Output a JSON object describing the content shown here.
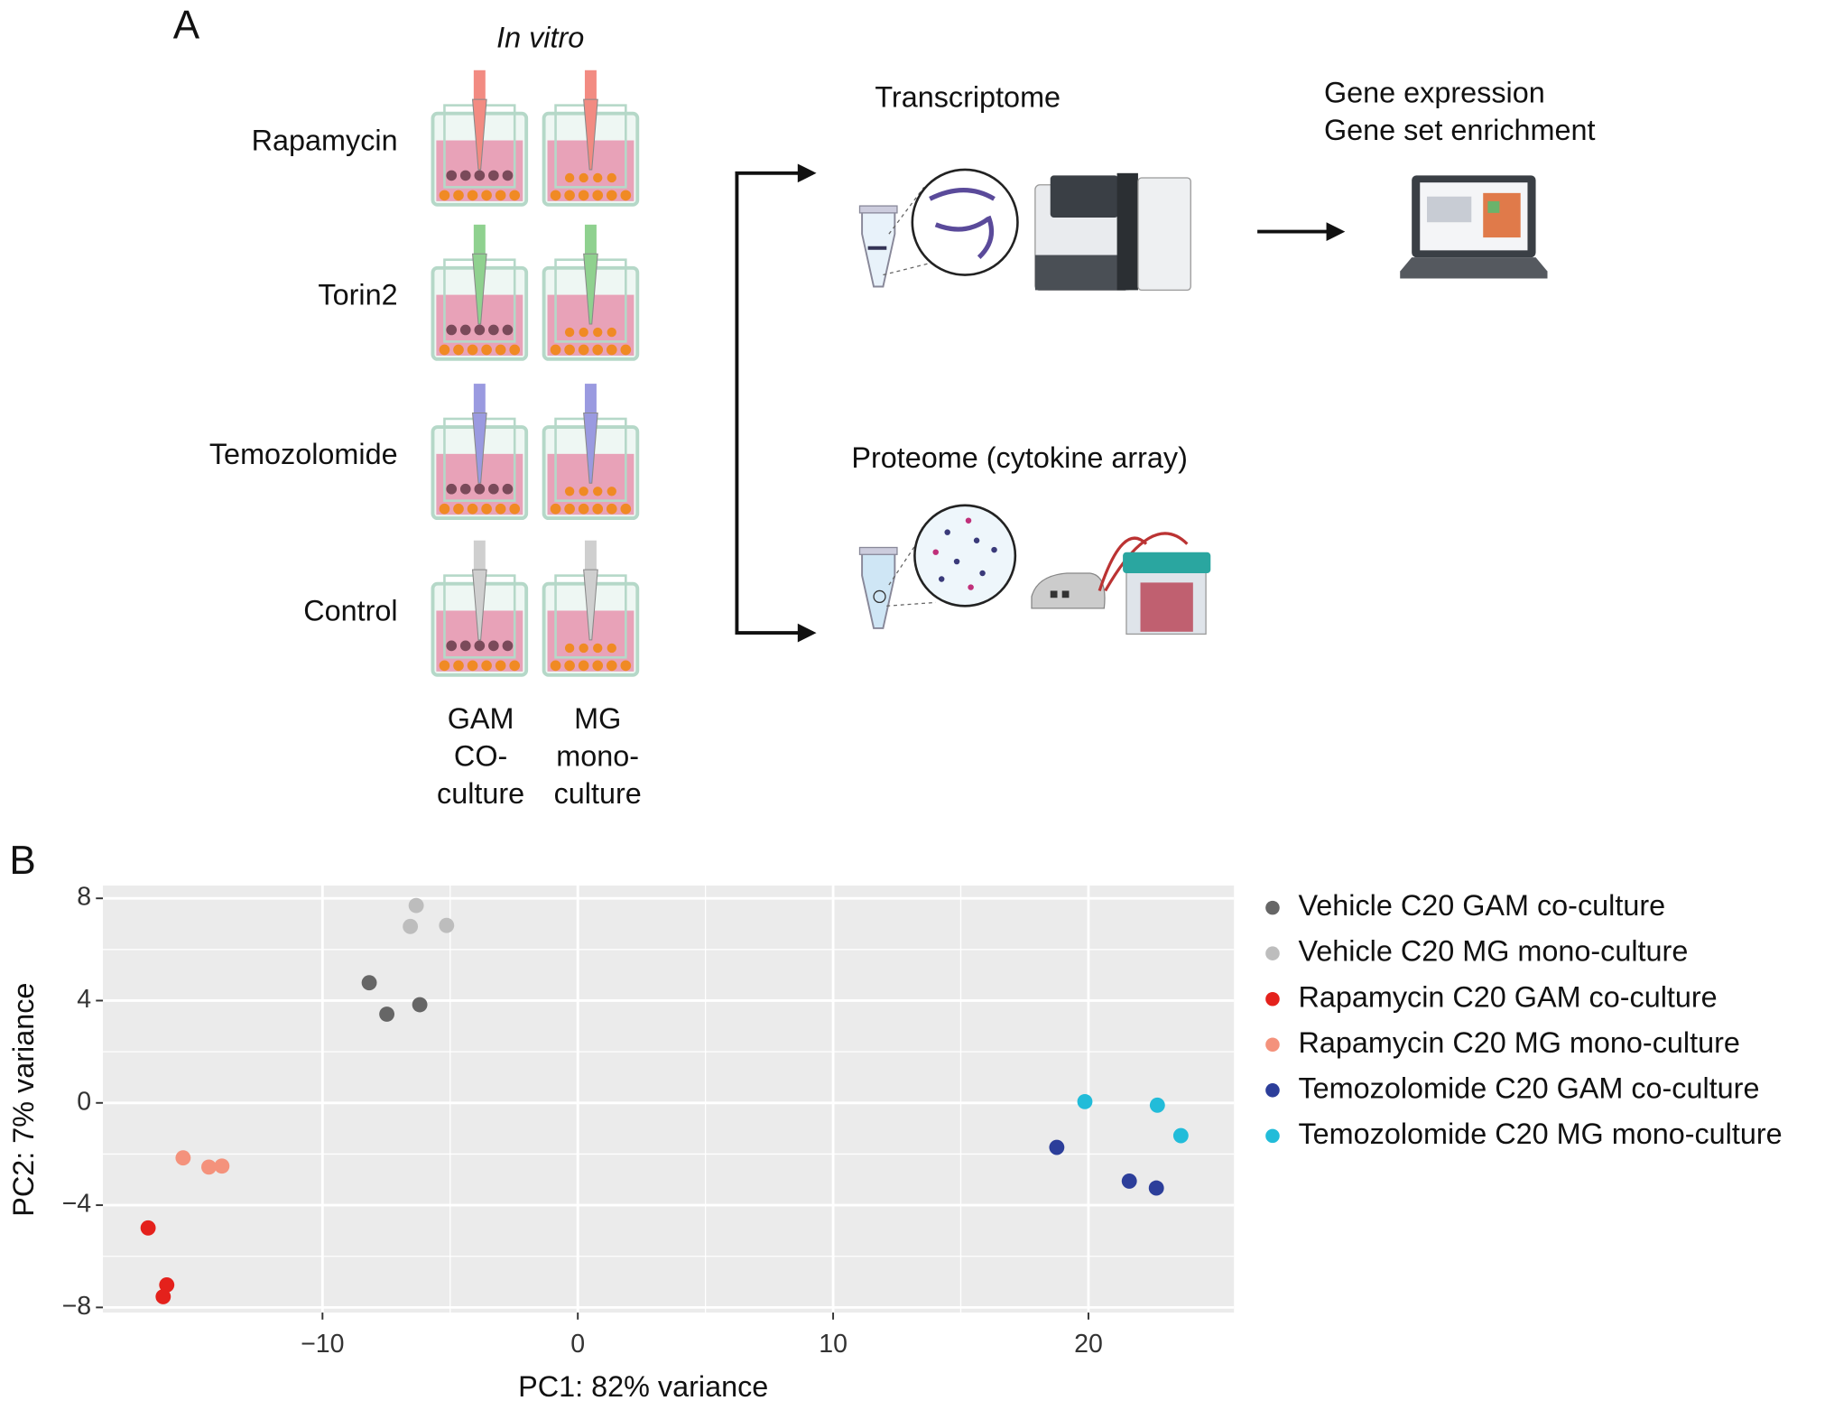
{
  "panel_a": {
    "label": "A",
    "condition_title": "In vitro",
    "rows": [
      "Rapamycin",
      "Torin2",
      "Temozolomide",
      "Control"
    ],
    "columns": [
      [
        "GAM",
        "CO-",
        "culture"
      ],
      [
        "MG",
        "mono-",
        "culture"
      ]
    ],
    "transcriptome": "Transcriptome",
    "outputs": [
      "Gene expression",
      "Gene set enrichment"
    ],
    "proteome": "Proteome (cytokine array)"
  },
  "panel_b_label": "B",
  "chart_data": {
    "type": "scatter",
    "xlabel": "PC1: 82% variance",
    "ylabel": "PC2: 7% variance",
    "xlim": [
      -18.6,
      25.7
    ],
    "ylim": [
      -8.2,
      8.5
    ],
    "xticks": [
      {
        "value": -10,
        "label": "−10"
      },
      0,
      10,
      20
    ],
    "yticks": [
      8,
      4,
      0,
      {
        "value": -4,
        "label": "−4"
      },
      {
        "value": -8,
        "label": "−8"
      }
    ],
    "grid": true,
    "legend": "right",
    "series": [
      {
        "name": "Vehicle C20 GAM co-culture",
        "color": "#666666",
        "x": [
          -8.17,
          -7.48,
          -6.19
        ],
        "values": [
          4.7,
          3.47,
          3.84
        ]
      },
      {
        "name": "Vehicle C20 MG mono-culture",
        "color": "#bdbdbd",
        "x": [
          -6.33,
          -6.56,
          -5.14
        ],
        "values": [
          7.72,
          6.9,
          6.94
        ]
      },
      {
        "name": "Rapamycin C20 GAM co-culture",
        "color": "#e4211c",
        "x": [
          -16.83,
          -16.1,
          -16.24
        ],
        "values": [
          -4.89,
          -7.12,
          -7.58
        ]
      },
      {
        "name": "Rapamycin C20 MG mono-culture",
        "color": "#f4927c",
        "x": [
          -15.46,
          -14.45,
          -13.94
        ],
        "values": [
          -2.15,
          -2.51,
          -2.47
        ]
      },
      {
        "name": "Temozolomide C20 GAM co-culture",
        "color": "#2c3e9a",
        "x": [
          18.76,
          21.6,
          22.66
        ],
        "values": [
          -1.74,
          -3.06,
          -3.33
        ]
      },
      {
        "name": "Temozolomide C20 MG mono-culture",
        "color": "#22bcd9",
        "x": [
          19.86,
          22.7,
          23.62
        ],
        "values": [
          0.05,
          -0.09,
          -1.28
        ]
      }
    ]
  }
}
